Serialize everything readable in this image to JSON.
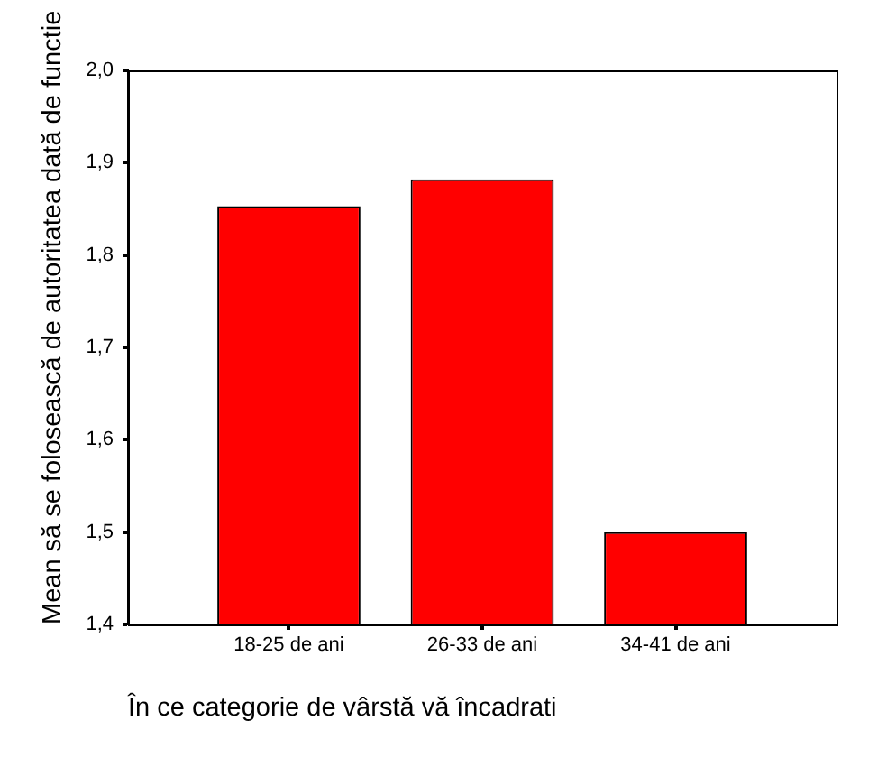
{
  "chart_data": {
    "type": "bar",
    "ylabel": "Mean să se folosească de autoritatea dată de functie",
    "xlabel": "În ce categorie de vârstă vă încadrati",
    "categories": [
      "18-25 de ani",
      "26-33 de ani",
      "34-41 de ani"
    ],
    "values": [
      1.853,
      1.882,
      1.5
    ],
    "color": "#ff0000",
    "ylim": [
      1.4,
      2.0
    ],
    "yticks": [
      {
        "value": 1.4,
        "label": "1,4"
      },
      {
        "value": 1.5,
        "label": "1,5"
      },
      {
        "value": 1.6,
        "label": "1,6"
      },
      {
        "value": 1.7,
        "label": "1,7"
      },
      {
        "value": 1.8,
        "label": "1,8"
      },
      {
        "value": 1.9,
        "label": "1,9"
      },
      {
        "value": 2.0,
        "label": "2,0"
      }
    ]
  }
}
